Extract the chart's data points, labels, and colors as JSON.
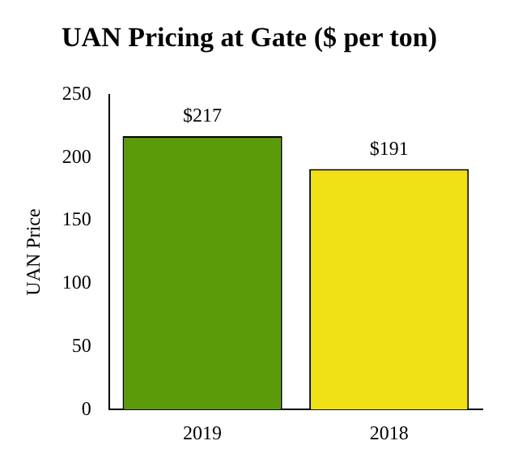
{
  "chart_data": {
    "type": "bar",
    "title": "UAN Pricing at Gate ($ per ton)",
    "ylabel": "UAN Price",
    "categories": [
      "2019",
      "2018"
    ],
    "values": [
      217,
      191
    ],
    "colors": [
      "#5b9a09",
      "#f0e016"
    ],
    "value_labels": [
      "$217",
      "$191"
    ],
    "ylim": [
      0,
      250
    ],
    "yticks": [
      0,
      50,
      100,
      150,
      200,
      250
    ],
    "grid": false,
    "legend": false
  }
}
